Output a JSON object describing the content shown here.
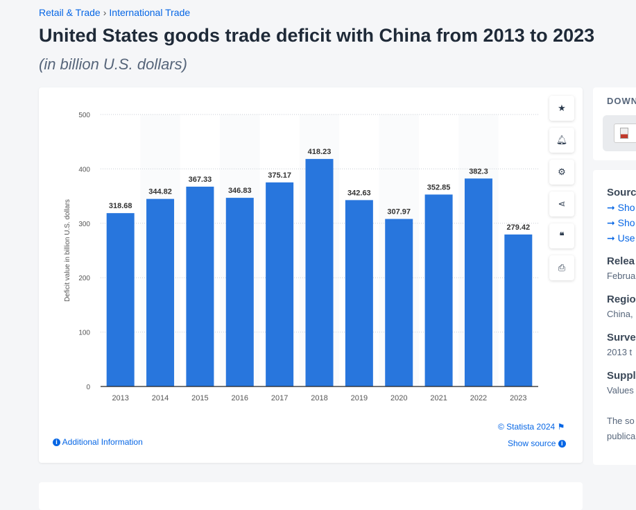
{
  "breadcrumb": [
    "Retail & Trade",
    "International Trade"
  ],
  "title": "United States goods trade deficit with China from 2013 to 2023",
  "subtitle": "(in billion U.S. dollars)",
  "tools": [
    "star-icon",
    "bell-icon",
    "gear-icon",
    "share-icon",
    "quote-icon",
    "print-icon"
  ],
  "chart_data": {
    "type": "bar",
    "categories": [
      "2013",
      "2014",
      "2015",
      "2016",
      "2017",
      "2018",
      "2019",
      "2020",
      "2021",
      "2022",
      "2023"
    ],
    "values": [
      318.68,
      344.82,
      367.33,
      346.83,
      375.17,
      418.23,
      342.63,
      307.97,
      352.85,
      382.3,
      279.42
    ],
    "ylabel": "Deficit value in billion U.S. dollars",
    "ylim": [
      0,
      500
    ],
    "yticks": [
      "0",
      "100",
      "200",
      "300",
      "400",
      "500"
    ],
    "grid": true,
    "bar_color": "#2876dd"
  },
  "footer": {
    "copyright": "© Statista 2024",
    "additional": "Additional Information",
    "show_source": "Show source"
  },
  "right_panel": {
    "download": "DOWN",
    "source_heading": "Sourc",
    "links": [
      "Sho",
      "Sho",
      "Use"
    ],
    "release_heading": "Relea",
    "release": "Februa",
    "region_heading": "Regio",
    "region": "China,",
    "survey_heading": "Surve",
    "survey": "2013 t",
    "supp_heading": "Suppl",
    "supp": "Values",
    "note1": "The so",
    "note2": "publica"
  }
}
